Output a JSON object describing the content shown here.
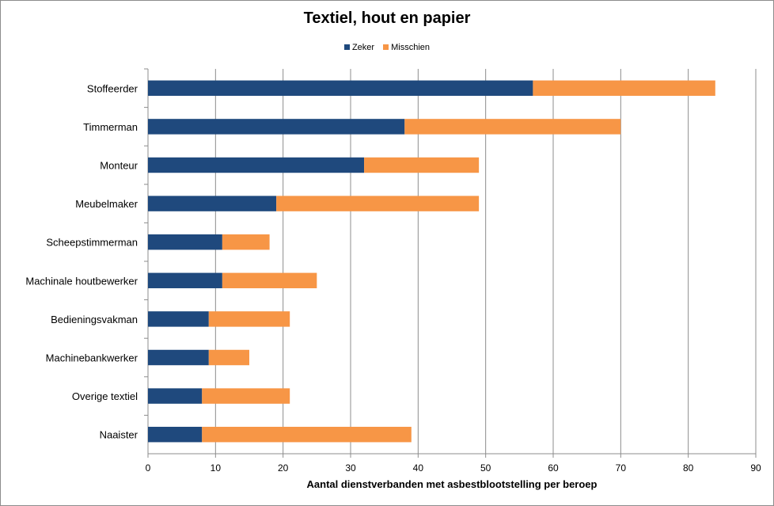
{
  "chart_data": {
    "type": "bar",
    "orientation": "horizontal",
    "stacked": true,
    "title": "Textiel, hout en papier",
    "xlabel": "Aantal dienstverbanden met asbestblootstelling per beroep",
    "ylabel": "",
    "xlim": [
      0,
      90
    ],
    "xticks": [
      "0",
      "10",
      "20",
      "30",
      "40",
      "50",
      "60",
      "70",
      "80",
      "90"
    ],
    "grid": "vertical",
    "legend_position": "top",
    "categories": [
      "Stoffeerder",
      "Timmerman",
      "Monteur",
      "Meubelmaker",
      "Scheepstimmerman",
      "Machinale houtbewerker",
      "Bedieningsvakman",
      "Machinebankwerker",
      "Overige textiel",
      "Naaister"
    ],
    "series": [
      {
        "name": "Zeker",
        "color": "#1f497d",
        "values": [
          57,
          38,
          32,
          19,
          11,
          11,
          9,
          9,
          8,
          8
        ]
      },
      {
        "name": "Misschien",
        "color": "#f79646",
        "values": [
          27,
          32,
          17,
          30,
          7,
          14,
          12,
          6,
          13,
          31
        ]
      }
    ]
  }
}
